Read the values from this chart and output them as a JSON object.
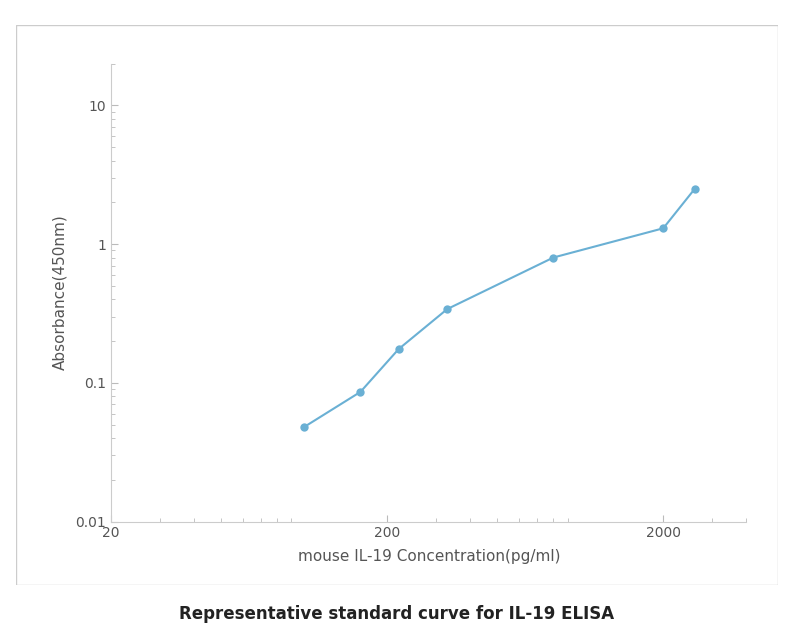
{
  "x": [
    100,
    160,
    220,
    330,
    800,
    2000,
    2600
  ],
  "y": [
    0.048,
    0.086,
    0.175,
    0.34,
    0.8,
    1.3,
    2.5
  ],
  "line_color": "#6ab0d4",
  "marker_color": "#6ab0d4",
  "marker_size": 6,
  "line_width": 1.5,
  "xlabel": "mouse IL-19 Concentration(pg/ml)",
  "ylabel": "Absorbance(450nm)",
  "xlim": [
    20,
    4000
  ],
  "ylim": [
    0.01,
    20
  ],
  "xticks": [
    20,
    200,
    2000
  ],
  "yticks": [
    0.01,
    0.1,
    1,
    10
  ],
  "title_below": "Representative standard curve for IL-19 ELISA",
  "background_color": "#ffffff",
  "plot_bg_color": "#ffffff",
  "border_color": "#cccccc",
  "tick_color": "#bbbbbb",
  "label_color": "#555555",
  "label_fontsize": 11,
  "tick_fontsize": 10,
  "caption_fontsize": 12
}
